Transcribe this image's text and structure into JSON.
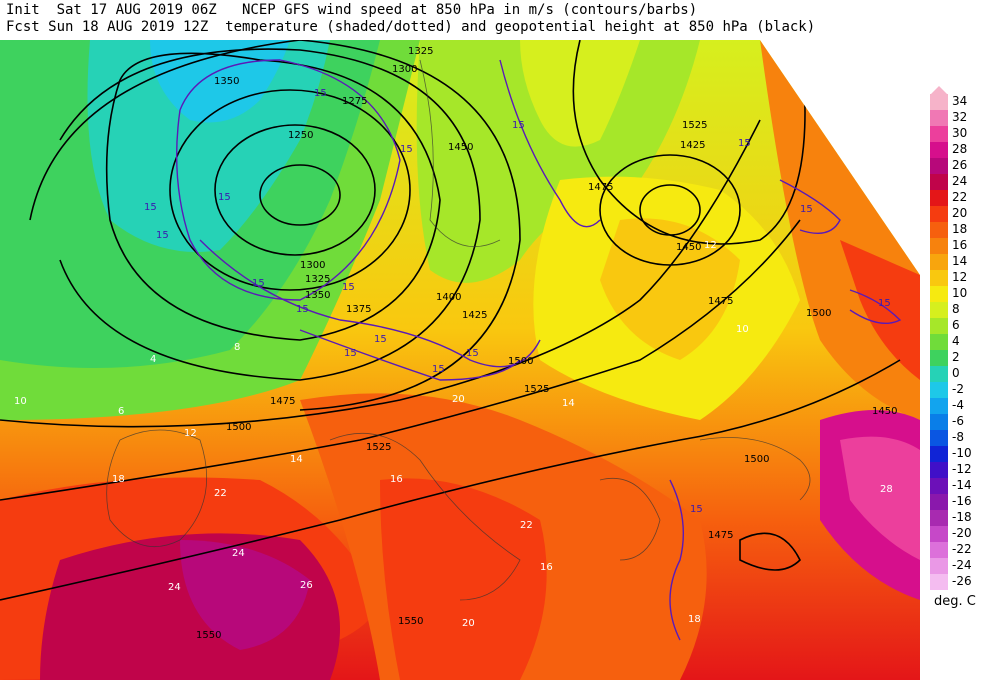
{
  "header": {
    "line1": "Init  Sat 17 AUG 2019 06Z   NCEP GFS wind speed at 850 hPa in m/s (contours/barbs)",
    "line2": "Fcst Sun 18 AUG 2019 12Z  temperature (shaded/dotted) and geopotential height at 850 hPa (black)"
  },
  "legend": {
    "units": "deg. C",
    "entries": [
      {
        "label": "34",
        "color": "#f6b3c9"
      },
      {
        "label": "32",
        "color": "#f078b4"
      },
      {
        "label": "30",
        "color": "#ec3f9c"
      },
      {
        "label": "28",
        "color": "#d60f8c"
      },
      {
        "label": "26",
        "color": "#b7087a"
      },
      {
        "label": "24",
        "color": "#c0044a"
      },
      {
        "label": "22",
        "color": "#e41618"
      },
      {
        "label": "20",
        "color": "#f53c10"
      },
      {
        "label": "18",
        "color": "#f6600e"
      },
      {
        "label": "16",
        "color": "#f7820d"
      },
      {
        "label": "14",
        "color": "#f8a50d"
      },
      {
        "label": "12",
        "color": "#f9c80f"
      },
      {
        "label": "10",
        "color": "#f6ea10"
      },
      {
        "label": "8",
        "color": "#d6ef1e"
      },
      {
        "label": "6",
        "color": "#a6e729"
      },
      {
        "label": "4",
        "color": "#70dc3a"
      },
      {
        "label": "2",
        "color": "#3ed25e"
      },
      {
        "label": "0",
        "color": "#26d2b6"
      },
      {
        "label": "-2",
        "color": "#1ec8e8"
      },
      {
        "label": "-4",
        "color": "#12a4ee"
      },
      {
        "label": "-6",
        "color": "#0a7ee8"
      },
      {
        "label": "-8",
        "color": "#0a56e2"
      },
      {
        "label": "-10",
        "color": "#1024d6"
      },
      {
        "label": "-12",
        "color": "#4010c8"
      },
      {
        "label": "-14",
        "color": "#6c10b8"
      },
      {
        "label": "-16",
        "color": "#8a18ac"
      },
      {
        "label": "-18",
        "color": "#a82ab0"
      },
      {
        "label": "-20",
        "color": "#c648c8"
      },
      {
        "label": "-22",
        "color": "#dc70da"
      },
      {
        "label": "-24",
        "color": "#ea98e6"
      },
      {
        "label": "-26",
        "color": "#f4bcf0"
      }
    ]
  },
  "map": {
    "height_labels": [
      "1325",
      "1300",
      "1350",
      "1275",
      "1250",
      "1300",
      "1325",
      "1350",
      "1375",
      "1400",
      "1425",
      "1450",
      "1475",
      "1500",
      "1525",
      "1550",
      "1525",
      "1500",
      "1475",
      "1450",
      "1475",
      "1500",
      "1525",
      "1550",
      "1425",
      "1450",
      "1475",
      "1500"
    ],
    "wind_labels": [
      "15",
      "15",
      "15",
      "15",
      "15",
      "15",
      "15",
      "15",
      "15",
      "15",
      "15",
      "15",
      "15",
      "15",
      "15",
      "15",
      "15"
    ],
    "temp_labels": [
      "4",
      "6",
      "8",
      "10",
      "12",
      "14",
      "16",
      "18",
      "20",
      "22",
      "24",
      "26",
      "28",
      "10",
      "12",
      "14",
      "16",
      "18",
      "20",
      "22",
      "24"
    ]
  }
}
